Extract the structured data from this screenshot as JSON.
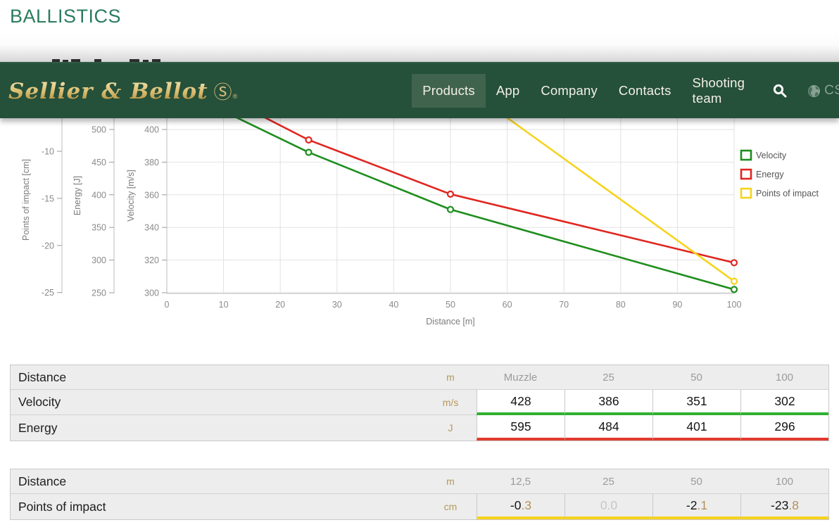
{
  "page": {
    "title": "BALLISTICS"
  },
  "navbar": {
    "brand": {
      "name": "Sellier & Bellot",
      "monogram": "Ⓢ",
      "registered": "®"
    },
    "items": [
      {
        "label": "Products",
        "active": true
      },
      {
        "label": "App",
        "active": false
      },
      {
        "label": "Company",
        "active": false
      },
      {
        "label": "Contacts",
        "active": false
      },
      {
        "label": "Shooting team",
        "active": false
      }
    ],
    "language": "CS",
    "colors": {
      "bar_bg": "#25503a",
      "active_bg": "#40634d",
      "gold": "#d9bd7c",
      "muted": "#87a192"
    }
  },
  "chart_data": {
    "type": "line",
    "xlabel": "Distance [m]",
    "x_ticks": [
      0,
      10,
      20,
      30,
      40,
      50,
      60,
      70,
      80,
      90,
      100
    ],
    "x_range": [
      0,
      100
    ],
    "grid": true,
    "legend_position": "right",
    "legend": [
      "Velocity",
      "Energy",
      "Points of impact"
    ],
    "series": [
      {
        "name": "Velocity",
        "unit": "m/s",
        "color": "#1e8e1e",
        "x": [
          0,
          25,
          50,
          100
        ],
        "values": [
          428,
          386,
          351,
          302
        ],
        "axis": {
          "label": "Velocity [m/s]",
          "ticks": [
            300,
            320,
            340,
            360,
            380,
            400
          ]
        }
      },
      {
        "name": "Energy",
        "unit": "J",
        "color": "#e02620",
        "x": [
          0,
          25,
          50,
          100
        ],
        "values": [
          595,
          484,
          401,
          296
        ],
        "axis": {
          "label": "Energy [J]",
          "ticks": [
            250,
            300,
            350,
            400,
            450,
            500
          ]
        }
      },
      {
        "name": "Points of impact",
        "unit": "cm",
        "color": "#f6d31c",
        "x": [
          12.5,
          25,
          50,
          100
        ],
        "values": [
          -0.3,
          0.0,
          -2.1,
          -23.8
        ],
        "axis": {
          "label": "Points of impact [cm]",
          "ticks": [
            -10,
            -15,
            -20,
            -25
          ]
        }
      }
    ]
  },
  "tables": [
    {
      "rows": [
        {
          "label": "Distance",
          "unit": "m",
          "values": [
            "Muzzle",
            "25",
            "50",
            "100"
          ]
        },
        {
          "label": "Velocity",
          "unit": "m/s",
          "values": [
            "428",
            "386",
            "351",
            "302"
          ]
        },
        {
          "label": "Energy",
          "unit": "J",
          "values": [
            "595",
            "484",
            "401",
            "296"
          ]
        }
      ]
    },
    {
      "rows": [
        {
          "label": "Distance",
          "unit": "m",
          "values": [
            "12,5",
            "25",
            "50",
            "100"
          ]
        },
        {
          "label": "Points of impact",
          "unit": "cm",
          "values": [
            "-0.3",
            "0.0",
            "-2.1",
            "-23.8"
          ]
        }
      ]
    }
  ],
  "table_colors": {
    "velocity_underline": "#2fb12f",
    "energy_underline": "#e2392e",
    "poi_underline": "#f7d21e",
    "unit_text": "#b5985a"
  }
}
